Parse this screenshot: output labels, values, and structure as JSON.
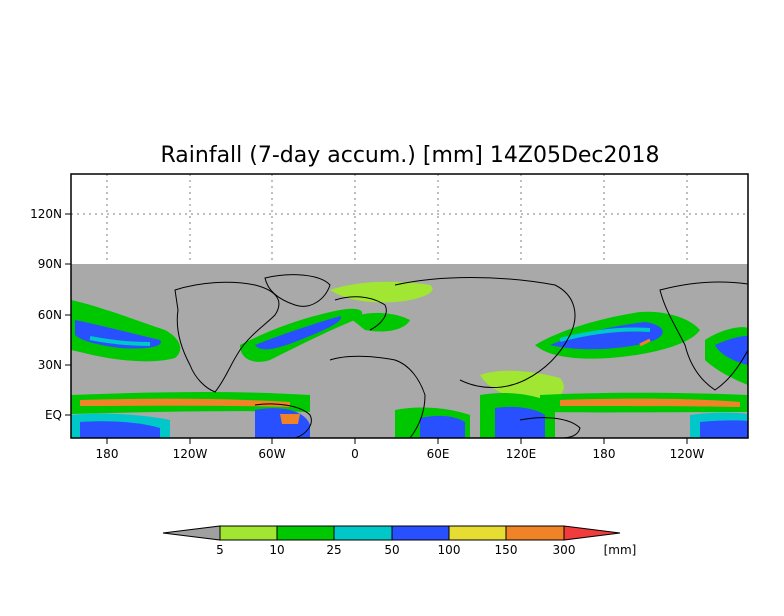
{
  "title": "Rainfall (7-day accum.) [mm] 14Z05Dec2018",
  "y_axis_labels": [
    "120N",
    "90N",
    "60N",
    "30N",
    "EQ"
  ],
  "x_axis_labels": [
    "180",
    "120W",
    "60W",
    "0",
    "60E",
    "120E",
    "180",
    "120W"
  ],
  "colorbar": {
    "thresholds": [
      "5",
      "10",
      "25",
      "50",
      "100",
      "150",
      "300"
    ],
    "unit": "[mm]",
    "colors": {
      "below": "#a0a0a0",
      "c5_10": "#a0e632",
      "c10_25": "#00c800",
      "c25_50": "#00c8c8",
      "c50_100": "#2850ff",
      "c100_150": "#e6dc32",
      "c150_300": "#f08228",
      "above": "#f03c3c"
    }
  },
  "map": {
    "land_color": "#a9a9a9",
    "no_data_color": "#a9a9a9",
    "coastline_color": "#000000",
    "gridline_style": "dotted"
  }
}
